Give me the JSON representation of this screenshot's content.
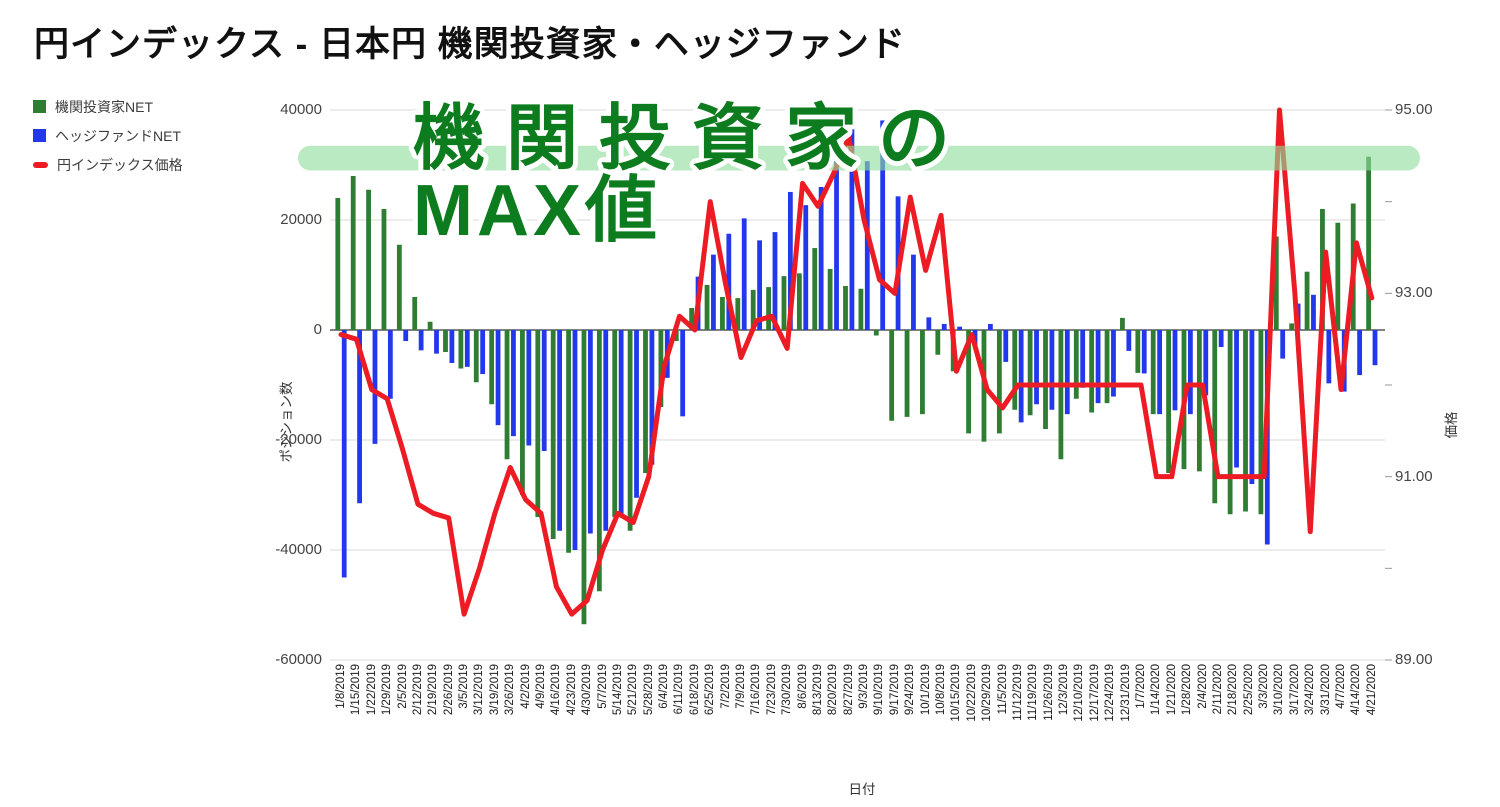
{
  "page": {
    "title": "円インデックス - 日本円 機関投資家・ヘッジファンド"
  },
  "legend": {
    "items": [
      {
        "label": "機関投資家NET",
        "color": "#2e7d32",
        "marker": "square"
      },
      {
        "label": "ヘッジファンドNET",
        "color": "#2337ec",
        "marker": "square"
      },
      {
        "label": "円インデックス価格",
        "color": "#ed1c24",
        "marker": "dash"
      }
    ]
  },
  "annotation": {
    "line1": "機関投資家の",
    "line2": "MAX値",
    "text_color": "#0d7c1e",
    "outline_color": "#ffffff",
    "band_color": "#8fdd9b"
  },
  "chart_data": {
    "type": "bar",
    "subtype": "combo-bar-line",
    "title": "円インデックス - 日本円 機関投資家・ヘッジファンド",
    "categories": [
      "1/8/2019",
      "1/15/2019",
      "1/22/2019",
      "1/29/2019",
      "2/5/2019",
      "2/12/2019",
      "2/19/2019",
      "2/26/2019",
      "3/5/2019",
      "3/12/2019",
      "3/19/2019",
      "3/26/2019",
      "4/2/2019",
      "4/9/2019",
      "4/16/2019",
      "4/23/2019",
      "4/30/2019",
      "5/7/2019",
      "5/14/2019",
      "5/21/2019",
      "5/28/2019",
      "6/4/2019",
      "6/11/2019",
      "6/18/2019",
      "6/25/2019",
      "7/2/2019",
      "7/9/2019",
      "7/16/2019",
      "7/23/2019",
      "7/30/2019",
      "8/6/2019",
      "8/13/2019",
      "8/20/2019",
      "8/27/2019",
      "9/3/2019",
      "9/10/2019",
      "9/17/2019",
      "9/24/2019",
      "10/1/2019",
      "10/8/2019",
      "10/15/2019",
      "10/22/2019",
      "10/29/2019",
      "11/5/2019",
      "11/12/2019",
      "11/19/2019",
      "11/26/2019",
      "12/3/2019",
      "12/10/2019",
      "12/17/2019",
      "12/24/2019",
      "12/31/2019",
      "1/7/2020",
      "1/14/2020",
      "1/21/2020",
      "1/28/2020",
      "2/4/2020",
      "2/11/2020",
      "2/18/2020",
      "2/25/2020",
      "3/3/2020",
      "3/10/2020",
      "3/17/2020",
      "3/24/2020",
      "3/31/2020",
      "4/7/2020",
      "4/14/2020",
      "4/21/2020"
    ],
    "series": [
      {
        "name": "機関投資家NET",
        "type": "bar",
        "axis": "left",
        "color": "#2e7d32",
        "values": [
          24000,
          28000,
          25500,
          22000,
          15500,
          6000,
          1500,
          -4000,
          -7000,
          -9500,
          -13500,
          -23500,
          -30000,
          -34000,
          -38000,
          -40500,
          -53500,
          -47500,
          -34000,
          -36500,
          -26000,
          -14000,
          -2000,
          4000,
          8200,
          6000,
          5800,
          7300,
          7800,
          9800,
          10300,
          14900,
          11100,
          8000,
          7500,
          -1000,
          -16500,
          -15800,
          -15300,
          -4500,
          -7500,
          -18800,
          -20300,
          -18800,
          -14500,
          -15500,
          -18000,
          -23500,
          -12500,
          -15000,
          -13300,
          2200,
          -7800,
          -15300,
          -26000,
          -25300,
          -25700,
          -31500,
          -33500,
          -33000,
          -33500,
          17000,
          1200,
          10600,
          22000,
          19500,
          23000,
          31500
        ]
      },
      {
        "name": "ヘッジファンドNET",
        "type": "bar",
        "axis": "left",
        "color": "#2337ec",
        "values": [
          -45000,
          -31500,
          -20700,
          -12500,
          -2000,
          -3700,
          -4300,
          -6000,
          -6700,
          -8000,
          -17300,
          -19300,
          -21000,
          -22000,
          -36500,
          -40000,
          -37000,
          -36500,
          -34000,
          -30500,
          -24500,
          -8700,
          -15700,
          9700,
          13700,
          17500,
          20300,
          16300,
          17800,
          25100,
          22700,
          26000,
          36500,
          37700,
          30700,
          38100,
          24300,
          13700,
          2300,
          1100,
          600,
          -3100,
          1100,
          -5800,
          -16800,
          -13500,
          -14500,
          -15300,
          -10500,
          -13300,
          -12100,
          -3800,
          -7900,
          -15300,
          -14600,
          -15300,
          -11900,
          -3100,
          -25000,
          -28000,
          -39000,
          -5200,
          4800,
          6400,
          -9700,
          -11200,
          -8200,
          -6400
        ]
      },
      {
        "name": "円インデックス価格",
        "type": "line",
        "axis": "right",
        "color": "#ed1c24",
        "values": [
          92.55,
          92.5,
          91.95,
          91.85,
          91.3,
          90.7,
          90.6,
          90.55,
          89.5,
          90.0,
          90.6,
          91.1,
          90.75,
          90.6,
          89.8,
          89.5,
          89.65,
          90.2,
          90.6,
          90.5,
          91.0,
          92.2,
          92.75,
          92.6,
          94.0,
          93.1,
          92.3,
          92.7,
          92.75,
          92.4,
          94.2,
          93.95,
          94.3,
          94.7,
          93.8,
          93.15,
          93.0,
          94.05,
          93.25,
          93.85,
          92.15,
          92.55,
          91.95,
          91.75,
          92.0,
          92.0,
          92.0,
          92.0,
          92.0,
          92.0,
          92.0,
          92.0,
          92.0,
          91.0,
          91.0,
          92.0,
          92.0,
          91.0,
          91.0,
          91.0,
          91.0,
          95.0,
          93.0,
          90.4,
          93.45,
          91.95,
          93.55,
          92.95
        ]
      }
    ],
    "axes": {
      "left": {
        "title": "ポジション数",
        "min": -60000,
        "max": 40000,
        "tick_labels": [
          "40000",
          "20000",
          "0",
          "-20000",
          "-40000",
          "-60000"
        ],
        "tick_values": [
          40000,
          20000,
          0,
          -20000,
          -40000,
          -60000
        ]
      },
      "right": {
        "title": "価格",
        "min": 89,
        "max": 95,
        "tick_labels": [
          "95.00",
          "93.00",
          "91.00",
          "89.00"
        ],
        "tick_values": [
          95,
          93,
          91,
          89
        ]
      },
      "x": {
        "title": "日付"
      }
    },
    "highlight_band": {
      "y_min": 29000,
      "y_max": 33500,
      "label": "機関投資家のMAX値"
    },
    "grid": true,
    "legend_position": "top-left"
  }
}
